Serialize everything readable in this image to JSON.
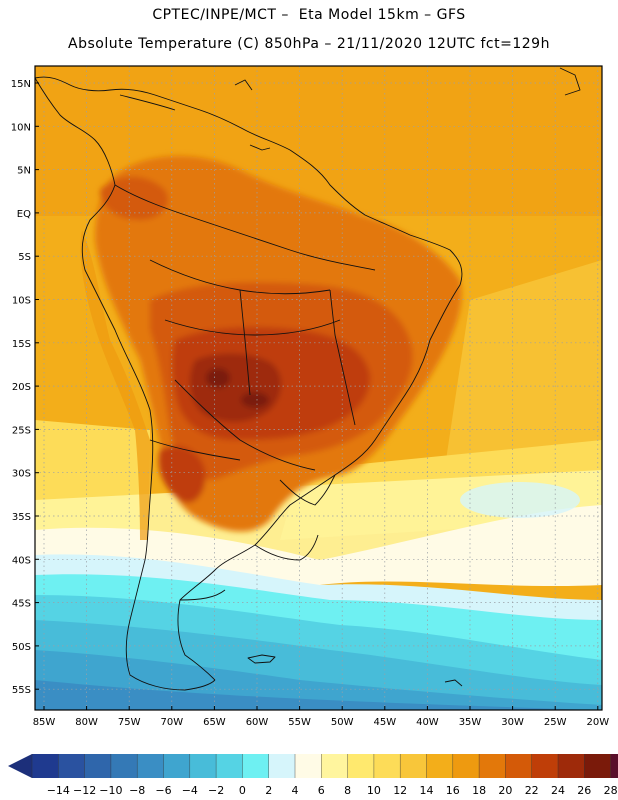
{
  "title_line1": "CPTEC/INPE/MCT –  Eta Model 15km – GFS",
  "title_line2": "Absolute Temperature (C) 850hPa – 21/11/2020 12UTC fct=129h",
  "lat_labels": [
    "15N",
    "10N",
    "5N",
    "EQ",
    "5S",
    "10S",
    "15S",
    "20S",
    "25S",
    "30S",
    "35S",
    "40S",
    "45S",
    "50S",
    "55S"
  ],
  "lon_labels": [
    "85W",
    "80W",
    "75W",
    "70W",
    "65W",
    "60W",
    "55W",
    "50W",
    "45W",
    "40W",
    "35W",
    "30W",
    "25W",
    "20W"
  ],
  "colorbar": {
    "labels": [
      "-14",
      "-12",
      "-10",
      "-8",
      "-6",
      "-4",
      "-2",
      "0",
      "2",
      "4",
      "6",
      "8",
      "10",
      "12",
      "14",
      "16",
      "18",
      "20",
      "22",
      "24",
      "26",
      "28"
    ],
    "colors": [
      "#1f3a8f",
      "#2a52a0",
      "#2f66ab",
      "#3479b6",
      "#3a8ec4",
      "#3fa5cf",
      "#48bcd9",
      "#55d3e4",
      "#6ef0f2",
      "#d6f5fb",
      "#fffbe6",
      "#fff59e",
      "#ffe96e",
      "#fddc58",
      "#f8c63a",
      "#f3ae1a",
      "#ee9a10",
      "#e3780a",
      "#d45a08",
      "#bf3e08",
      "#9e2a0a",
      "#7a1a0a",
      "#5a0f2a"
    ],
    "low_arrow_color": "#1c2f7a",
    "high_arrow_color": "#6a0e2e"
  }
}
